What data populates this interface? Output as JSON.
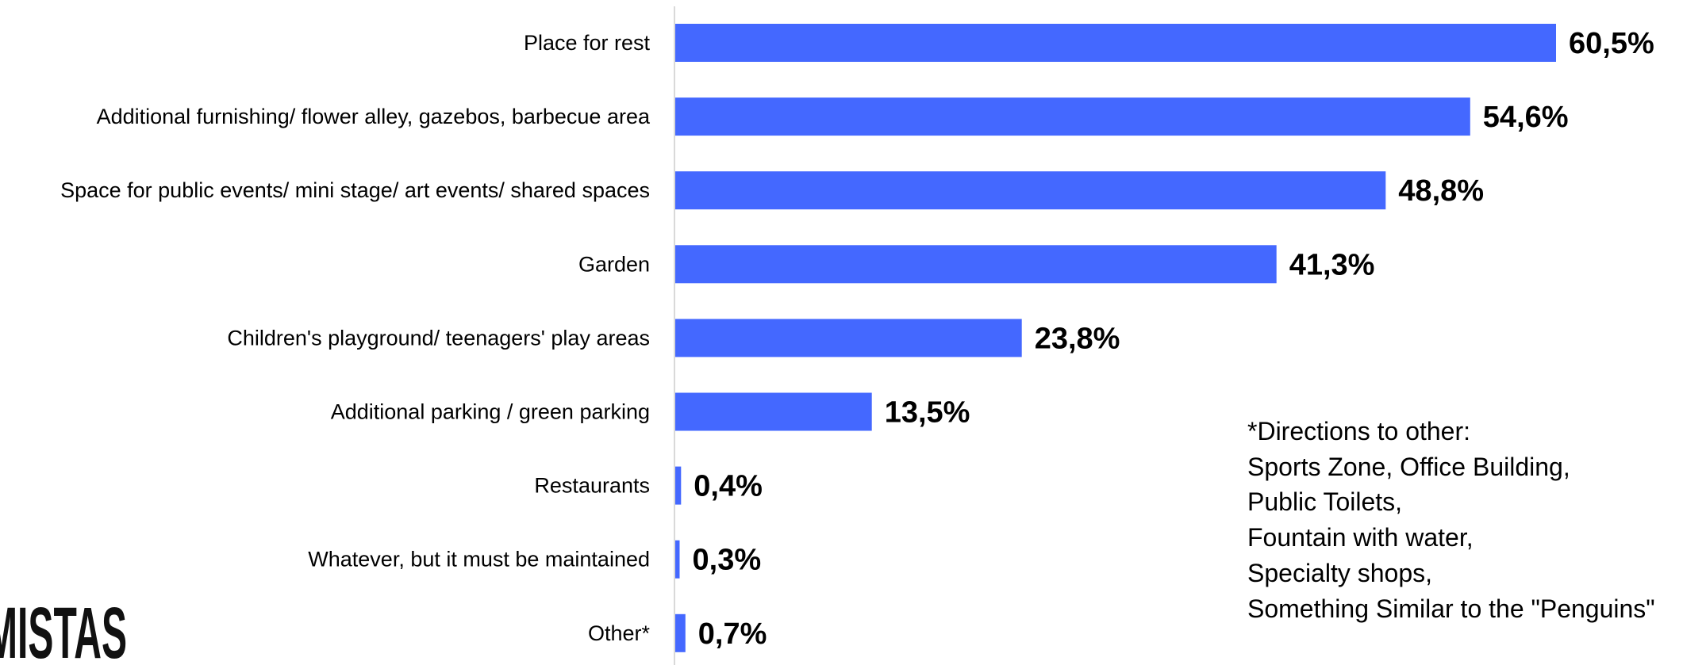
{
  "chart_data": {
    "type": "bar",
    "orientation": "horizontal",
    "categories": [
      "Place for rest",
      "Additional furnishing/ flower alley, gazebos, barbecue area",
      "Space for public events/ mini stage/ art events/ shared spaces",
      "Garden",
      "Children's playground/ teenagers' play areas",
      "Additional parking / green parking",
      "Restaurants",
      "Whatever, but it must be maintained",
      "Other*"
    ],
    "values": [
      60.5,
      54.6,
      48.8,
      41.3,
      23.8,
      13.5,
      0.4,
      0.3,
      0.7
    ],
    "value_labels": [
      "60,5%",
      "54,6%",
      "48,8%",
      "41,3%",
      "23,8%",
      "13,5%",
      "0,4%",
      "0,3%",
      "0,7%"
    ],
    "bar_color": "#4468FF",
    "xlim": [
      0,
      60.5
    ],
    "grid": false,
    "legend": "none"
  },
  "note": {
    "lines": [
      "*Directions to other:",
      "Sports Zone, Office Building,",
      "Public Toilets,",
      "Fountain with water,",
      "Specialty shops,",
      "Something Similar to the \"Penguins\""
    ]
  },
  "logo": {
    "text": "MISTAS"
  }
}
